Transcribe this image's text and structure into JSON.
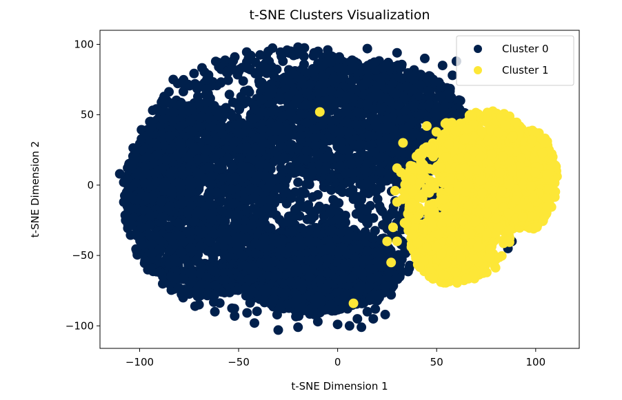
{
  "chart_data": {
    "type": "scatter",
    "title": "t-SNE Clusters Visualization",
    "xlabel": "t-SNE Dimension 1",
    "ylabel": "t-SNE Dimension 2",
    "xlim": [
      -120,
      122
    ],
    "ylim": [
      -116,
      110
    ],
    "xticks": [
      -100,
      -50,
      0,
      50,
      100
    ],
    "yticks": [
      -100,
      -50,
      0,
      50,
      100
    ],
    "tick_labels_x": [
      "−100",
      "−50",
      "0",
      "50",
      "100"
    ],
    "tick_labels_y": [
      "−100",
      "−50",
      "0",
      "50",
      "100"
    ],
    "legend": {
      "position": "top-right"
    },
    "series": [
      {
        "name": "Cluster 0",
        "color": "#00204c",
        "shape": {
          "ellipses": [
            {
              "cx": -25,
              "cy": 2,
              "rx": 82,
              "ry": 96
            },
            {
              "cx": -70,
              "cy": -10,
              "rx": 38,
              "ry": 70
            },
            {
              "cx": 10,
              "cy": 45,
              "rx": 55,
              "ry": 45
            },
            {
              "cx": -10,
              "cy": -60,
              "rx": 42,
              "ry": 30
            }
          ],
          "count": 5200
        },
        "outliers": [
          [
            -110,
            8
          ],
          [
            -108,
            2
          ],
          [
            -107,
            -25
          ],
          [
            -95,
            40
          ],
          [
            -90,
            52
          ],
          [
            -88,
            47
          ],
          [
            -96,
            20
          ],
          [
            -97,
            -8
          ],
          [
            -99,
            -30
          ],
          [
            -94,
            -42
          ],
          [
            -90,
            -62
          ],
          [
            -84,
            -65
          ],
          [
            -78,
            -80
          ],
          [
            -70,
            -85
          ],
          [
            -60,
            84
          ],
          [
            -66,
            75
          ],
          [
            -72,
            72
          ],
          [
            -45,
            90
          ],
          [
            -35,
            95
          ],
          [
            -20,
            98
          ],
          [
            -5,
            96
          ],
          [
            15,
            97
          ],
          [
            30,
            94
          ],
          [
            44,
            90
          ],
          [
            53,
            85
          ],
          [
            60,
            88
          ],
          [
            58,
            78
          ],
          [
            62,
            60
          ],
          [
            57,
            62
          ],
          [
            50,
            55
          ],
          [
            42,
            50
          ],
          [
            38,
            45
          ],
          [
            33,
            40
          ],
          [
            30,
            30
          ],
          [
            36,
            22
          ],
          [
            44,
            28
          ],
          [
            32,
            14
          ],
          [
            27,
            8
          ],
          [
            35,
            4
          ],
          [
            39,
            3
          ],
          [
            47,
            -27
          ],
          [
            45,
            -40
          ],
          [
            38,
            -40
          ],
          [
            32,
            -42
          ],
          [
            36,
            -46
          ],
          [
            28,
            -50
          ],
          [
            26,
            -62
          ],
          [
            24,
            -72
          ],
          [
            27,
            -78
          ],
          [
            20,
            -82
          ],
          [
            15,
            -90
          ],
          [
            10,
            -95
          ],
          [
            6,
            -100
          ],
          [
            0,
            -99
          ],
          [
            -10,
            -97
          ],
          [
            -20,
            -101
          ],
          [
            -30,
            -103
          ],
          [
            -42,
            -98
          ],
          [
            -52,
            -93
          ],
          [
            -62,
            -90
          ],
          [
            -72,
            -86
          ],
          [
            -56,
            80
          ],
          [
            -83,
            75
          ],
          [
            19,
            -88
          ],
          [
            24,
            -92
          ],
          [
            -5,
            -88
          ],
          [
            12,
            -101
          ],
          [
            21,
            -80
          ],
          [
            18,
            -95
          ],
          [
            86,
            -45
          ],
          [
            88,
            -40
          ],
          [
            47,
            -3
          ],
          [
            47,
            30
          ]
        ]
      },
      {
        "name": "Cluster 1",
        "color": "#fde737",
        "shape": {
          "ellipses": [
            {
              "cx": 62,
              "cy": -12,
              "rx": 30,
              "ry": 58
            },
            {
              "cx": 76,
              "cy": 8,
              "rx": 26,
              "ry": 45
            },
            {
              "cx": 96,
              "cy": 4,
              "rx": 15,
              "ry": 36
            },
            {
              "cx": 58,
              "cy": -45,
              "rx": 20,
              "ry": 25
            }
          ],
          "count": 2200
        },
        "outliers": [
          [
            -9,
            52
          ],
          [
            8,
            -84
          ],
          [
            30,
            12
          ],
          [
            29,
            -4
          ],
          [
            32,
            9
          ],
          [
            30,
            -12
          ],
          [
            33,
            30
          ],
          [
            45,
            42
          ],
          [
            25,
            -40
          ],
          [
            27,
            -55
          ],
          [
            28,
            -30
          ],
          [
            30,
            -40
          ]
        ]
      }
    ]
  }
}
